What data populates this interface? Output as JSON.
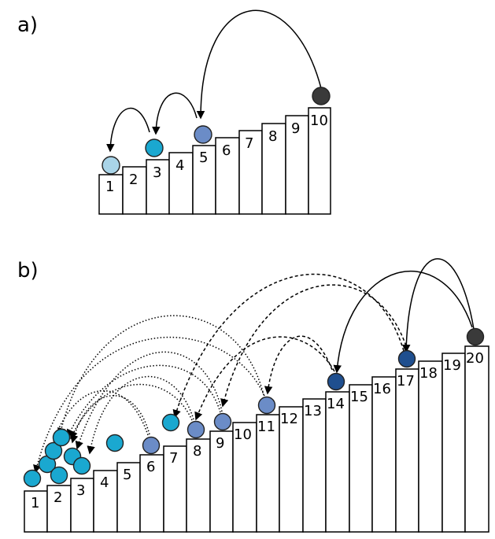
{
  "panels": [
    {
      "label": "a)",
      "steps": [
        "1",
        "2",
        "3",
        "4",
        "5",
        "6",
        "7",
        "8",
        "9",
        "10"
      ]
    },
    {
      "label": "b)",
      "steps": [
        "1",
        "2",
        "3",
        "4",
        "5",
        "6",
        "7",
        "8",
        "9",
        "10",
        "11",
        "12",
        "13",
        "14",
        "15",
        "16",
        "17",
        "18",
        "19",
        "20"
      ]
    }
  ],
  "colors": {
    "ball_top": "#3a3a3a",
    "ball_mid": "#6b8cc7",
    "ball_light": "#1aa8d0",
    "ball_pale": "#a9d4e8",
    "ball_navy": "#1f4f8f",
    "line": "#000000"
  }
}
